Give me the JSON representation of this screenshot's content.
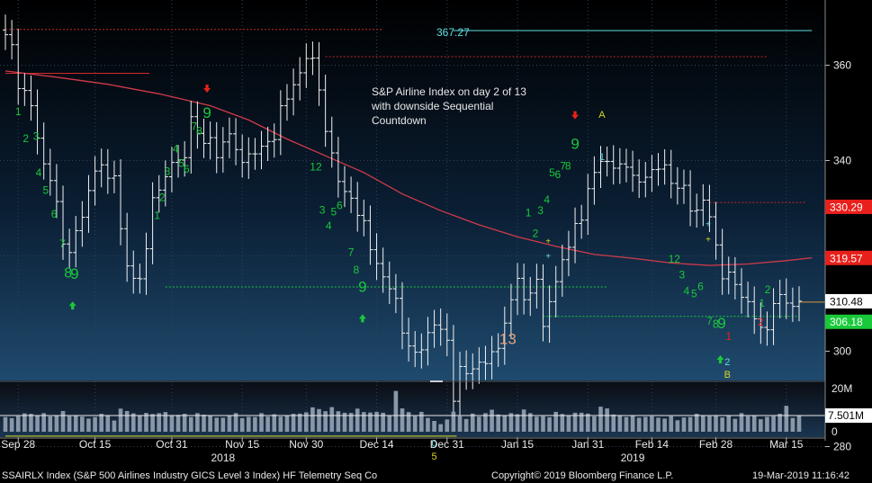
{
  "chart_data": {
    "type": "ohlc",
    "annotation": [
      "S&P Airline Index on day 2 of 13",
      "with downside Sequential",
      "Countdown"
    ],
    "y_axis": {
      "ticks": [
        280,
        300,
        320,
        340,
        360
      ],
      "ylim": [
        275,
        373
      ]
    },
    "volume_axis": {
      "ticks": [
        "20M",
        "0"
      ],
      "current_label": "7.501M",
      "ylim_millions": [
        0,
        21
      ]
    },
    "x_axis": {
      "labels": [
        {
          "i": 2,
          "text": "Sep 28"
        },
        {
          "i": 14,
          "text": "Oct 15"
        },
        {
          "i": 26,
          "text": "Oct 31"
        },
        {
          "i": 37,
          "text": "Nov 15"
        },
        {
          "i": 47,
          "text": "Nov 30"
        },
        {
          "i": 58,
          "text": "Dec 14"
        },
        {
          "i": 69,
          "text": "Dec 31"
        },
        {
          "i": 80,
          "text": "Jan 15"
        },
        {
          "i": 91,
          "text": "Jan 31"
        },
        {
          "i": 101,
          "text": "Feb 14"
        },
        {
          "i": 111,
          "text": "Feb 28"
        },
        {
          "i": 122,
          "text": "Mar 15"
        }
      ],
      "years": [
        {
          "i": 34,
          "text": "2018"
        },
        {
          "i": 98,
          "text": "2019"
        }
      ]
    },
    "price_labels": [
      {
        "value": 330.29,
        "text": "330.29",
        "color": "#e8201c"
      },
      {
        "value": 319.57,
        "text": "319.57",
        "color": "#e8201c"
      },
      {
        "value": 310.48,
        "text": "310.48",
        "color": "#ffffff"
      },
      {
        "value": 306.18,
        "text": "306.18",
        "color": "#19c93a"
      }
    ],
    "top_level_text": {
      "text": "367.27",
      "value": 367.27,
      "color": "#5fe0e0"
    },
    "levels": [
      {
        "value": 367.27,
        "from": 70,
        "to": 126,
        "color": "#5fe0e0",
        "dash": false
      },
      {
        "value": 367.5,
        "from": 0,
        "to": 59,
        "color": "#c2282a",
        "dash": true
      },
      {
        "value": 361.8,
        "from": 50,
        "to": 119,
        "color": "#c2282a",
        "dash": true
      },
      {
        "value": 358.3,
        "from": 0,
        "to": 22.5,
        "color": "#d22b2b",
        "dash": false
      },
      {
        "value": 313.5,
        "from": 25,
        "to": 94,
        "color": "#19c93a",
        "dash": true
      },
      {
        "value": 307.3,
        "from": 84,
        "to": 124,
        "color": "#19c93a",
        "dash": true
      },
      {
        "value": 331.2,
        "from": 110,
        "to": 125,
        "color": "#c2282a",
        "dash": true
      },
      {
        "value": 310.3,
        "from": 124,
        "to": 129,
        "color": "#d89b3a",
        "dash": false
      },
      {
        "value": 282.2,
        "from": 0,
        "to": 70.5,
        "color": "#d8d820",
        "dash": false
      }
    ],
    "moving_average": [
      [
        0,
        358.8
      ],
      [
        8,
        357.5
      ],
      [
        16,
        356.0
      ],
      [
        24,
        354.0
      ],
      [
        32,
        351.5
      ],
      [
        38,
        348.5
      ],
      [
        44,
        344.5
      ],
      [
        50,
        341.0
      ],
      [
        56,
        337.5
      ],
      [
        62,
        333.0
      ],
      [
        68,
        329.5
      ],
      [
        74,
        326.5
      ],
      [
        80,
        324.0
      ],
      [
        86,
        322.0
      ],
      [
        92,
        320.3
      ],
      [
        98,
        319.5
      ],
      [
        104,
        318.5
      ],
      [
        110,
        318.0
      ],
      [
        116,
        318.3
      ],
      [
        122,
        319.0
      ],
      [
        126,
        319.6
      ]
    ],
    "series": [
      {
        "name": "SSAIRLX Index",
        "close": [
          366.4,
          364.3,
          355.1,
          354.7,
          351.5,
          344.7,
          339.3,
          335.8,
          331.4,
          322.5,
          320.7,
          325.3,
          328.1,
          333.7,
          337.8,
          339.1,
          336.3,
          336.8,
          325.7,
          317.9,
          315.3,
          315.2,
          321.5,
          332.2,
          333.8,
          336.6,
          339.6,
          340.1,
          340.6,
          349.2,
          345.7,
          343.6,
          344.8,
          340.6,
          343.9,
          345.6,
          342.3,
          339.6,
          341.4,
          341.4,
          343.0,
          344.0,
          344.4,
          351.5,
          352.9,
          355.9,
          358.4,
          361.4,
          361.5,
          354.8,
          346.1,
          341.6,
          335.6,
          333.5,
          332.1,
          328.5,
          327.4,
          321.3,
          318.4,
          315.6,
          313.1,
          311.1,
          303.8,
          301.1,
          299.8,
          300.3,
          303.9,
          305.5,
          304.6,
          302.3,
          289.5,
          296.8,
          295.3,
          296.3,
          297.7,
          297.4,
          299.9,
          300.6,
          305.9,
          310.8,
          315.3,
          310.8,
          312.2,
          315.1,
          305.2,
          310.4,
          314.6,
          319.2,
          321.8,
          326.8,
          327.5,
          334.1,
          337.5,
          339.8,
          339.8,
          338.4,
          339.3,
          338.6,
          336.9,
          335.5,
          336.5,
          338.1,
          338.2,
          339.1,
          335.2,
          334.2,
          334.8,
          329.4,
          329.6,
          331.7,
          328.2,
          322.3,
          315.2,
          316.6,
          314.0,
          311.3,
          310.4,
          306.8,
          305.0,
          304.5,
          310.0,
          311.9,
          310.1,
          309.4,
          310.5
        ]
      }
    ],
    "volume_millions": [
      6.8,
      6.3,
      7.2,
      8.5,
      8.3,
      7.7,
      8.6,
      7.1,
      7.7,
      9.6,
      7.2,
      7.4,
      7.0,
      6.1,
      6.8,
      8.3,
      7.5,
      5.2,
      10.7,
      9.6,
      8.5,
      7.6,
      8.7,
      8.2,
      8.6,
      9.1,
      7.5,
      7.8,
      8.3,
      6.8,
      8.6,
      7.9,
      7.6,
      6.5,
      6.5,
      7.7,
      8.6,
      6.3,
      6.9,
      6.8,
      8.6,
      7.0,
      8.1,
      7.0,
      7.5,
      8.3,
      8.4,
      9.0,
      11.3,
      10.5,
      9.5,
      11.4,
      9.5,
      8.8,
      8.7,
      10.7,
      9.1,
      8.9,
      9.2,
      8.8,
      7.3,
      18.9,
      10.8,
      9.1,
      7.2,
      9.2,
      6.4,
      5.0,
      3.5,
      5.7,
      9.3,
      7.2,
      5.9,
      8.4,
      7.0,
      8.6,
      10.2,
      8.0,
      7.7,
      8.6,
      8.1,
      10.3,
      8.6,
      7.0,
      7.2,
      6.7,
      9.2,
      8.2,
      7.5,
      8.8,
      8.8,
      8.4,
      7.1,
      11.6,
      10.8,
      8.0,
      7.5,
      6.8,
      7.6,
      6.5,
      6.9,
      7.2,
      6.5,
      6.1,
      7.2,
      5.3,
      6.6,
      6.8,
      8.3,
      7.6,
      7.2,
      7.4,
      6.6,
      7.7,
      6.0,
      8.6,
      7.2,
      7.4,
      5.8,
      6.9,
      7.2,
      8.3,
      12.0,
      6.4,
      7.5
    ],
    "seq_labels": [
      {
        "i": 2,
        "price": 349.5,
        "text": "1",
        "color": "#19c93a",
        "size": 12
      },
      {
        "i": 3.2,
        "price": 343.9,
        "text": "2",
        "color": "#19c93a",
        "size": 12
      },
      {
        "i": 4.8,
        "price": 344.3,
        "text": "3",
        "color": "#19c93a",
        "size": 12
      },
      {
        "i": 5.2,
        "price": 336.7,
        "text": "4",
        "color": "#19c93a",
        "size": 12
      },
      {
        "i": 6.3,
        "price": 333.0,
        "text": "5",
        "color": "#19c93a",
        "size": 12
      },
      {
        "i": 7.6,
        "price": 328.0,
        "text": "6",
        "color": "#19c93a",
        "size": 12
      },
      {
        "i": 8.9,
        "price": 321.8,
        "text": "7",
        "color": "#19c93a",
        "size": 12
      },
      {
        "i": 9.8,
        "price": 315.5,
        "text": "8",
        "color": "#19c93a",
        "size": 16
      },
      {
        "i": 10.8,
        "price": 315.2,
        "text": "9",
        "color": "#19c93a",
        "size": 17
      },
      {
        "i": 23.7,
        "price": 327.7,
        "text": "1",
        "color": "#19c93a",
        "size": 12
      },
      {
        "i": 24.5,
        "price": 331.5,
        "text": "2",
        "color": "#19c93a",
        "size": 12
      },
      {
        "i": 25.3,
        "price": 337.0,
        "text": "3",
        "color": "#19c93a",
        "size": 12
      },
      {
        "i": 26.6,
        "price": 341.7,
        "text": "4",
        "color": "#19c93a",
        "size": 12
      },
      {
        "i": 27.5,
        "price": 338.7,
        "text": "5",
        "color": "#19c93a",
        "size": 12
      },
      {
        "i": 28.3,
        "price": 337.5,
        "text": "6",
        "color": "#19c93a",
        "size": 12
      },
      {
        "i": 29.5,
        "price": 346.4,
        "text": "7",
        "color": "#19c93a",
        "size": 12
      },
      {
        "i": 30.3,
        "price": 345.5,
        "text": "8",
        "color": "#19c93a",
        "size": 12
      },
      {
        "i": 31.5,
        "price": 349.0,
        "text": "9",
        "color": "#19c93a",
        "size": 17
      },
      {
        "i": 48.5,
        "price": 337.9,
        "text": "12",
        "color": "#19c93a",
        "size": 12
      },
      {
        "i": 49.5,
        "price": 328.9,
        "text": "3",
        "color": "#19c93a",
        "size": 12
      },
      {
        "i": 50.5,
        "price": 325.6,
        "text": "4",
        "color": "#19c93a",
        "size": 12
      },
      {
        "i": 51.3,
        "price": 328.5,
        "text": "5",
        "color": "#19c93a",
        "size": 12
      },
      {
        "i": 52.2,
        "price": 329.8,
        "text": "6",
        "color": "#19c93a",
        "size": 12
      },
      {
        "i": 54.0,
        "price": 320.0,
        "text": "7",
        "color": "#19c93a",
        "size": 12
      },
      {
        "i": 54.8,
        "price": 316.3,
        "text": "8",
        "color": "#19c93a",
        "size": 12
      },
      {
        "i": 55.8,
        "price": 312.5,
        "text": "9",
        "color": "#19c93a",
        "size": 17
      },
      {
        "i": 78.5,
        "price": 301.5,
        "text": "13",
        "color": "#e4a27b",
        "size": 17
      },
      {
        "i": 81.7,
        "price": 328.3,
        "text": "1",
        "color": "#19c93a",
        "size": 12
      },
      {
        "i": 82.8,
        "price": 324.0,
        "text": "2",
        "color": "#19c93a",
        "size": 12
      },
      {
        "i": 83.6,
        "price": 328.8,
        "text": "3",
        "color": "#19c93a",
        "size": 12
      },
      {
        "i": 84.6,
        "price": 331.0,
        "text": "4",
        "color": "#19c93a",
        "size": 12
      },
      {
        "i": 85.4,
        "price": 336.7,
        "text": "5",
        "color": "#19c93a",
        "size": 12
      },
      {
        "i": 86.3,
        "price": 336.3,
        "text": "6",
        "color": "#19c93a",
        "size": 12
      },
      {
        "i": 87.1,
        "price": 338.1,
        "text": "7",
        "color": "#19c93a",
        "size": 12
      },
      {
        "i": 87.9,
        "price": 338.1,
        "text": "8",
        "color": "#19c93a",
        "size": 12
      },
      {
        "i": 89.0,
        "price": 342.5,
        "text": "9",
        "color": "#19c93a",
        "size": 17
      },
      {
        "i": 93.2,
        "price": 349.0,
        "text": "A",
        "color": "#d8d820",
        "size": 11
      },
      {
        "i": 93.2,
        "price": 340.1,
        "text": "1",
        "color": "#5fe0e0",
        "size": 11
      },
      {
        "i": 104.5,
        "price": 318.6,
        "text": "12",
        "color": "#19c93a",
        "size": 12
      },
      {
        "i": 105.7,
        "price": 315.3,
        "text": "3",
        "color": "#19c93a",
        "size": 12
      },
      {
        "i": 106.4,
        "price": 311.9,
        "text": "4",
        "color": "#19c93a",
        "size": 12
      },
      {
        "i": 107.6,
        "price": 311.3,
        "text": "5",
        "color": "#19c93a",
        "size": 12
      },
      {
        "i": 108.6,
        "price": 312.8,
        "text": "6",
        "color": "#19c93a",
        "size": 12
      },
      {
        "i": 110.0,
        "price": 305.6,
        "text": "7",
        "color": "#19c93a",
        "size": 12
      },
      {
        "i": 111.0,
        "price": 304.9,
        "text": "8",
        "color": "#19c93a",
        "size": 13
      },
      {
        "i": 111.9,
        "price": 304.8,
        "text": "9",
        "color": "#19c93a",
        "size": 17
      },
      {
        "i": 113.0,
        "price": 302.4,
        "text": "1",
        "color": "#e8201c",
        "size": 12
      },
      {
        "i": 112.8,
        "price": 297.1,
        "text": "2",
        "color": "#5fe0e0",
        "size": 11
      },
      {
        "i": 112.8,
        "price": 294.4,
        "text": "B",
        "color": "#d8d820",
        "size": 11
      },
      {
        "i": 118.2,
        "price": 309.3,
        "text": "1",
        "color": "#19c93a",
        "size": 12
      },
      {
        "i": 119.1,
        "price": 312.2,
        "text": "2",
        "color": "#19c93a",
        "size": 12
      },
      {
        "i": 118.0,
        "price": 305.4,
        "text": "2",
        "color": "#e8201c",
        "size": 12
      },
      {
        "i": 67.0,
        "price": 280.0,
        "text": "0",
        "color": "#5fe0e0",
        "size": 11
      },
      {
        "i": 67.0,
        "price": 277.3,
        "text": "5",
        "color": "#d8d820",
        "size": 11
      }
    ],
    "footer": {
      "left": "SSAIRLX Index (S&P 500 Airlines Industry GICS Level 3 Index) HF Telemetry Seq Co",
      "center": "Copyright© 2019 Bloomberg Finance L.P.",
      "right": "19-Mar-2019 11:16:42"
    }
  }
}
